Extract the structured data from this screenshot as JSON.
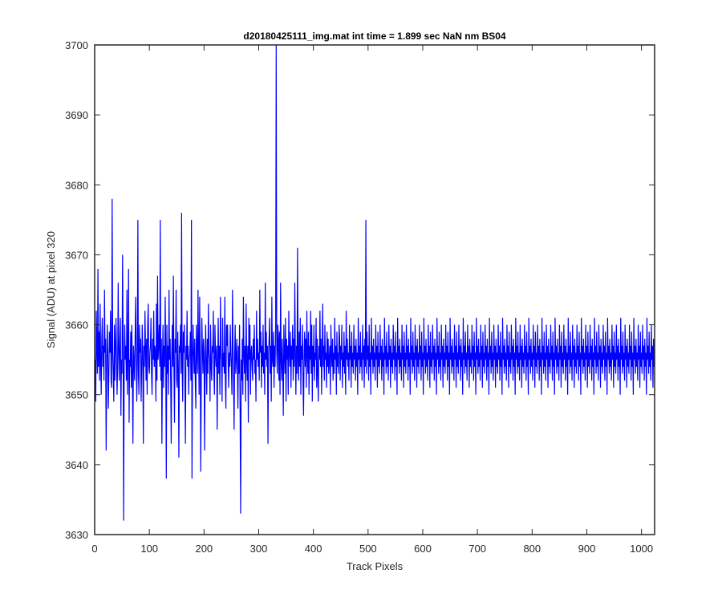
{
  "chart_data": {
    "type": "line",
    "title": "d20180425111_img.mat int time = 1.899 sec  NaN nm BS04",
    "xlabel": "Track Pixels",
    "ylabel": "Signal (ADU) at pixel 320",
    "xlim": [
      0,
      1024
    ],
    "ylim": [
      3630,
      3700
    ],
    "xticks": [
      0,
      100,
      200,
      300,
      400,
      500,
      600,
      700,
      800,
      900,
      1000
    ],
    "yticks": [
      3630,
      3640,
      3650,
      3660,
      3670,
      3680,
      3690,
      3700
    ],
    "xtick_labels": [
      "0",
      "100",
      "200",
      "300",
      "400",
      "500",
      "600",
      "700",
      "800",
      "900",
      "1000"
    ],
    "ytick_labels": [
      "3630",
      "3640",
      "3650",
      "3660",
      "3670",
      "3680",
      "3690",
      "3700"
    ],
    "grid": false,
    "series_color": "#0000ff",
    "series": [
      {
        "x_start": 1,
        "x_step": 1,
        "values": [
          3655,
          3649,
          3662,
          3657,
          3653,
          3668,
          3654,
          3659,
          3652,
          3663,
          3655,
          3650,
          3658,
          3661,
          3654,
          3657,
          3652,
          3665,
          3656,
          3658,
          3642,
          3654,
          3660,
          3656,
          3648,
          3653,
          3659,
          3656,
          3662,
          3652,
          3651,
          3678,
          3656,
          3653,
          3649,
          3660,
          3652,
          3657,
          3661,
          3655,
          3650,
          3654,
          3666,
          3656,
          3652,
          3658,
          3661,
          3647,
          3655,
          3653,
          3670,
          3658,
          3632,
          3654,
          3660,
          3655,
          3657,
          3652,
          3665,
          3650,
          3656,
          3668,
          3646,
          3655,
          3654,
          3659,
          3651,
          3660,
          3653,
          3643,
          3657,
          3655,
          3652,
          3658,
          3664,
          3656,
          3649,
          3655,
          3675,
          3653,
          3650,
          3660,
          3656,
          3658,
          3649,
          3654,
          3660,
          3655,
          3643,
          3657,
          3654,
          3662,
          3657,
          3652,
          3658,
          3650,
          3660,
          3663,
          3654,
          3653,
          3656,
          3657,
          3661,
          3653,
          3650,
          3658,
          3655,
          3662,
          3654,
          3657,
          3656,
          3649,
          3663,
          3652,
          3667,
          3655,
          3657,
          3660,
          3654,
          3675,
          3652,
          3658,
          3643,
          3655,
          3660,
          3651,
          3657,
          3654,
          3664,
          3656,
          3638,
          3660,
          3653,
          3657,
          3650,
          3665,
          3655,
          3658,
          3652,
          3643,
          3656,
          3660,
          3654,
          3667,
          3653,
          3646,
          3658,
          3656,
          3665,
          3652,
          3651,
          3659,
          3654,
          3641,
          3657,
          3656,
          3660,
          3653,
          3676,
          3654,
          3649,
          3659,
          3656,
          3660,
          3652,
          3643,
          3657,
          3655,
          3662,
          3654,
          3657,
          3650,
          3655,
          3656,
          3659,
          3652,
          3675,
          3638,
          3654,
          3660,
          3656,
          3653,
          3658,
          3652,
          3648,
          3660,
          3656,
          3653,
          3665,
          3657,
          3650,
          3664,
          3655,
          3639,
          3652,
          3661,
          3657,
          3653,
          3658,
          3656,
          3642,
          3654,
          3660,
          3654,
          3650,
          3658,
          3653,
          3663,
          3656,
          3655,
          3649,
          3660,
          3654,
          3652,
          3657,
          3656,
          3662,
          3653,
          3650,
          3660,
          3656,
          3654,
          3657,
          3645,
          3654,
          3661,
          3653,
          3657,
          3650,
          3664,
          3656,
          3655,
          3649,
          3661,
          3654,
          3656,
          3653,
          3664,
          3652,
          3648,
          3660,
          3657,
          3660,
          3655,
          3651,
          3656,
          3654,
          3660,
          3656,
          3654,
          3650,
          3665,
          3657,
          3652,
          3645,
          3656,
          3660,
          3653,
          3655,
          3658,
          3654,
          3648,
          3657,
          3653,
          3660,
          3647,
          3633,
          3655,
          3652,
          3658,
          3650,
          3664,
          3656,
          3653,
          3657,
          3649,
          3663,
          3655,
          3652,
          3657,
          3646,
          3661,
          3655,
          3660,
          3650,
          3656,
          3657,
          3654,
          3652,
          3658,
          3655,
          3660,
          3653,
          3655,
          3649,
          3662,
          3655,
          3658,
          3654,
          3656,
          3652,
          3665,
          3656,
          3659,
          3651,
          3657,
          3654,
          3660,
          3653,
          3656,
          3650,
          3666,
          3655,
          3659,
          3654,
          3657,
          3643,
          3656,
          3658,
          3661,
          3653,
          3657,
          3649,
          3664,
          3655,
          3654,
          3659,
          3651,
          3657,
          3654,
          3660,
          3700,
          3656,
          3653,
          3660,
          3658,
          3652,
          3659,
          3650,
          3666,
          3655,
          3652,
          3658,
          3654,
          3647,
          3660,
          3656,
          3653,
          3661,
          3649,
          3658,
          3655,
          3657,
          3650,
          3662,
          3656,
          3654,
          3659,
          3651,
          3657,
          3655,
          3660,
          3652,
          3658,
          3654,
          3666,
          3656,
          3650,
          3657,
          3653,
          3671,
          3655,
          3652,
          3659,
          3654,
          3661,
          3650,
          3657,
          3655,
          3660,
          3652,
          3647,
          3656,
          3659,
          3654,
          3658,
          3651,
          3662,
          3656,
          3653,
          3659,
          3650,
          3657,
          3655,
          3662,
          3653,
          3660,
          3649,
          3657,
          3654,
          3660,
          3652,
          3656,
          3655,
          3661,
          3651,
          3658,
          3653,
          3649,
          3657,
          3655,
          3662,
          3654,
          3658,
          3650,
          3656,
          3663,
          3654,
          3657,
          3652,
          3660,
          3655,
          3656,
          3651,
          3659,
          3654,
          3658,
          3653,
          3655,
          3657,
          3650,
          3660,
          3656,
          3654,
          3658,
          3652,
          3656,
          3653,
          3661,
          3655,
          3657,
          3650,
          3659,
          3654,
          3656,
          3653,
          3660,
          3658,
          3652,
          3657,
          3655,
          3660,
          3651,
          3656,
          3654,
          3659,
          3653,
          3657,
          3650,
          3662,
          3655,
          3658,
          3654,
          3656,
          3652,
          3660,
          3655,
          3657,
          3651,
          3659,
          3654,
          3656,
          3653,
          3660,
          3655,
          3657,
          3652,
          3658,
          3654,
          3656,
          3650,
          3661,
          3655,
          3657,
          3653,
          3659,
          3654,
          3656,
          3652,
          3660,
          3655,
          3657,
          3651,
          3658,
          3654,
          3675,
          3653,
          3659,
          3655,
          3657,
          3652,
          3660,
          3654,
          3656,
          3650,
          3661,
          3655,
          3657,
          3653,
          3658,
          3654,
          3656,
          3652,
          3660,
          3655,
          3657,
          3651,
          3659,
          3654,
          3656,
          3653,
          3660,
          3655,
          3657,
          3652,
          3658,
          3654,
          3656,
          3650,
          3661,
          3655,
          3657,
          3653,
          3659,
          3654,
          3656,
          3652,
          3660,
          3655,
          3657,
          3651,
          3658,
          3654,
          3656,
          3653,
          3660,
          3655,
          3657,
          3652,
          3659,
          3654,
          3656,
          3650,
          3661,
          3655,
          3657,
          3653,
          3658,
          3654,
          3656,
          3652,
          3660,
          3655,
          3657,
          3651,
          3659,
          3654,
          3656,
          3653,
          3660,
          3655,
          3657,
          3652,
          3658,
          3654,
          3656,
          3650,
          3661,
          3655,
          3657,
          3653,
          3659,
          3654,
          3656,
          3652,
          3660,
          3655,
          3657,
          3651,
          3658,
          3654,
          3656,
          3653,
          3660,
          3655,
          3657,
          3652,
          3659,
          3654,
          3656,
          3650,
          3661,
          3655,
          3657,
          3653,
          3658,
          3654,
          3656,
          3652,
          3660,
          3655,
          3657,
          3651,
          3659,
          3654,
          3656,
          3653,
          3660,
          3655,
          3657,
          3652,
          3658,
          3654,
          3656,
          3650,
          3661,
          3655,
          3657,
          3653,
          3659,
          3654,
          3656,
          3652,
          3660,
          3655,
          3657,
          3651,
          3658,
          3654,
          3656,
          3653,
          3660,
          3655,
          3657,
          3652,
          3659,
          3654,
          3656,
          3650,
          3661,
          3655,
          3657,
          3653,
          3658,
          3654,
          3656,
          3652,
          3660,
          3655,
          3657,
          3651,
          3659,
          3654,
          3656,
          3653,
          3660,
          3655,
          3657,
          3652,
          3658,
          3654,
          3656,
          3650,
          3661,
          3655,
          3657,
          3653,
          3659,
          3654,
          3656,
          3652,
          3660,
          3655,
          3657,
          3651,
          3658,
          3654,
          3656,
          3653,
          3660,
          3655,
          3657,
          3652,
          3659,
          3654,
          3656,
          3650,
          3661,
          3655,
          3657,
          3653,
          3658,
          3654,
          3656,
          3652,
          3660,
          3655,
          3657,
          3651,
          3659,
          3654,
          3656,
          3653,
          3660,
          3655,
          3657,
          3652,
          3658,
          3654,
          3656,
          3650,
          3661,
          3655,
          3657,
          3653,
          3659,
          3654,
          3656,
          3652,
          3660,
          3655,
          3657,
          3651,
          3658,
          3654,
          3656,
          3653,
          3660,
          3655,
          3657,
          3652,
          3659,
          3654,
          3656,
          3650,
          3661,
          3655,
          3657,
          3653,
          3658,
          3654,
          3656,
          3652,
          3660,
          3655,
          3657,
          3651,
          3659,
          3654,
          3656,
          3653,
          3660,
          3655,
          3657,
          3652,
          3658,
          3654,
          3656,
          3650,
          3661,
          3655,
          3657,
          3653,
          3659,
          3654,
          3656,
          3652,
          3660,
          3655,
          3657,
          3651,
          3658,
          3654,
          3656,
          3653,
          3660,
          3655,
          3657,
          3652,
          3659,
          3654,
          3656,
          3650,
          3661,
          3655,
          3657,
          3653,
          3658,
          3654,
          3656,
          3652,
          3660,
          3655,
          3657,
          3651,
          3659,
          3654,
          3656,
          3653,
          3660,
          3655,
          3657,
          3652,
          3658,
          3654,
          3656,
          3650,
          3661,
          3655,
          3657,
          3653,
          3659,
          3654,
          3656,
          3652,
          3660,
          3655,
          3657,
          3651,
          3658,
          3654,
          3656,
          3653,
          3660,
          3655,
          3657,
          3652,
          3659,
          3654,
          3656,
          3650,
          3661,
          3655,
          3657,
          3653,
          3658,
          3654,
          3656,
          3652,
          3660,
          3655,
          3657,
          3651,
          3659,
          3654,
          3656,
          3653,
          3660,
          3655,
          3657,
          3652,
          3658,
          3654,
          3656,
          3650,
          3661,
          3655,
          3657,
          3653,
          3659,
          3654,
          3656,
          3652,
          3660,
          3655,
          3657,
          3651,
          3658,
          3654,
          3656,
          3653,
          3660,
          3655,
          3657,
          3652,
          3659,
          3654,
          3656,
          3650,
          3661,
          3655,
          3657,
          3653,
          3658,
          3654,
          3656,
          3652,
          3660,
          3655,
          3657,
          3651,
          3659,
          3654,
          3656,
          3653,
          3660,
          3655,
          3657,
          3652,
          3658,
          3654,
          3656,
          3650,
          3661,
          3655,
          3657,
          3653,
          3659,
          3654,
          3656,
          3652,
          3660,
          3655,
          3657,
          3651,
          3658,
          3654,
          3656,
          3653,
          3660,
          3655,
          3657,
          3652,
          3659,
          3654,
          3656,
          3650,
          3661,
          3655,
          3657,
          3653,
          3658,
          3654,
          3656,
          3652,
          3660,
          3655,
          3657,
          3651,
          3659,
          3654,
          3656,
          3653,
          3660,
          3655,
          3657,
          3652,
          3658,
          3654,
          3656,
          3650,
          3661,
          3655,
          3657,
          3653,
          3659,
          3654,
          3656,
          3652,
          3660,
          3655,
          3657,
          3651,
          3658,
          3654,
          3656,
          3653,
          3660,
          3655,
          3657,
          3652,
          3659,
          3654,
          3656,
          3650,
          3661,
          3655,
          3657,
          3653,
          3658,
          3654,
          3656,
          3652,
          3660,
          3655,
          3657,
          3651,
          3659,
          3654,
          3656,
          3653,
          3660,
          3655,
          3657,
          3652,
          3658,
          3654,
          3656,
          3650,
          3661,
          3655,
          3657,
          3653,
          3659,
          3654,
          3656,
          3652,
          3660,
          3655,
          3657,
          3651,
          3658,
          3654,
          3656,
          3653,
          3660,
          3655,
          3657
        ]
      }
    ]
  }
}
